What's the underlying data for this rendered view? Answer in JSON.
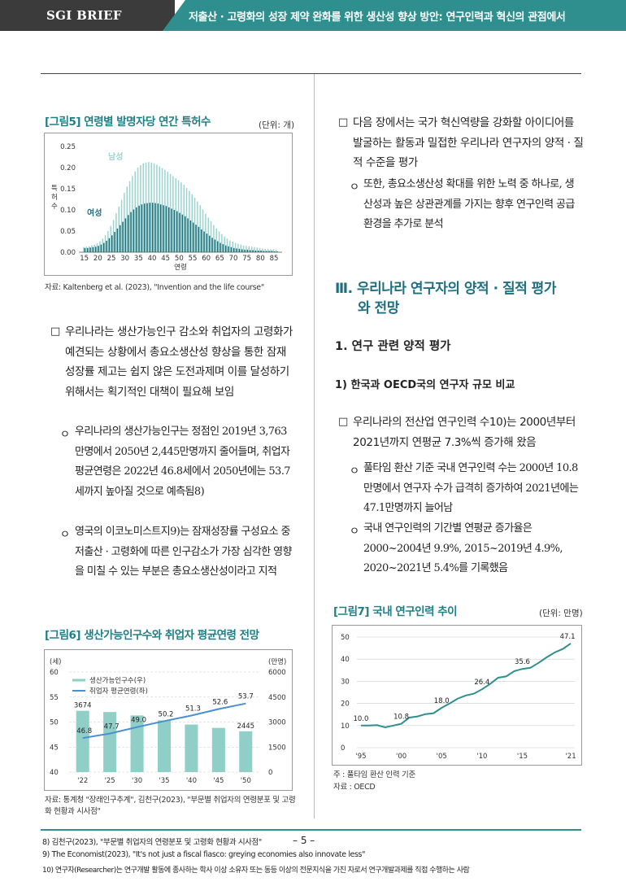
{
  "header": {
    "brand": "SGI BRIEF",
    "title": "저출산 · 고령화의 성장 제약 완화를 위한 생산성 향상 방안: 연구인력과 혁신의 관점에서"
  },
  "fig5": {
    "title": "[그림5] 연령별 발명자당 연간 특허수",
    "unit": "(단위: 개)",
    "source": "자료: Kaltenberg et al. (2023), \"Invention and the life course\"",
    "chart_data": {
      "type": "bar",
      "xlabel": "연령",
      "ylabel": "특허수",
      "xticks": [
        "15",
        "20",
        "25",
        "30",
        "35",
        "40",
        "45",
        "50",
        "55",
        "60",
        "65",
        "70",
        "75",
        "80",
        "85"
      ],
      "yticks": [
        "0.00",
        "0.05",
        "0.10",
        "0.15",
        "0.20",
        "0.25"
      ],
      "ylim": [
        0,
        0.25
      ],
      "series": [
        {
          "name": "남성",
          "color": "#9dd3cf",
          "x": [
            15,
            16,
            17,
            18,
            19,
            20,
            21,
            22,
            23,
            24,
            25,
            26,
            27,
            28,
            29,
            30,
            31,
            32,
            33,
            34,
            35,
            36,
            37,
            38,
            39,
            40,
            41,
            42,
            43,
            44,
            45,
            46,
            47,
            48,
            49,
            50,
            51,
            52,
            53,
            54,
            55,
            56,
            57,
            58,
            59,
            60,
            61,
            62,
            63,
            64,
            65,
            66,
            67,
            68,
            69,
            70,
            71,
            72,
            73,
            74,
            75,
            76,
            77,
            78,
            79,
            80,
            81,
            82,
            83,
            84,
            85,
            86
          ],
          "values": [
            0.012,
            0.013,
            0.014,
            0.016,
            0.018,
            0.021,
            0.026,
            0.032,
            0.04,
            0.05,
            0.062,
            0.076,
            0.092,
            0.108,
            0.124,
            0.14,
            0.155,
            0.168,
            0.18,
            0.191,
            0.2,
            0.206,
            0.21,
            0.212,
            0.213,
            0.212,
            0.21,
            0.207,
            0.203,
            0.199,
            0.195,
            0.19,
            0.185,
            0.18,
            0.175,
            0.17,
            0.165,
            0.159,
            0.152,
            0.145,
            0.137,
            0.129,
            0.12,
            0.111,
            0.101,
            0.091,
            0.082,
            0.073,
            0.064,
            0.056,
            0.049,
            0.043,
            0.037,
            0.032,
            0.028,
            0.025,
            0.022,
            0.02,
            0.018,
            0.016,
            0.015,
            0.014,
            0.013,
            0.012,
            0.011,
            0.01,
            0.009,
            0.008,
            0.008,
            0.007,
            0.007,
            0.006
          ]
        },
        {
          "name": "여성",
          "color": "#1f6f7f",
          "x": [
            15,
            16,
            17,
            18,
            19,
            20,
            21,
            22,
            23,
            24,
            25,
            26,
            27,
            28,
            29,
            30,
            31,
            32,
            33,
            34,
            35,
            36,
            37,
            38,
            39,
            40,
            41,
            42,
            43,
            44,
            45,
            46,
            47,
            48,
            49,
            50,
            51,
            52,
            53,
            54,
            55,
            56,
            57,
            58,
            59,
            60,
            61,
            62,
            63,
            64,
            65,
            66,
            67,
            68,
            69,
            70,
            71,
            72,
            73,
            74,
            75,
            76,
            77,
            78,
            79,
            80,
            81,
            82,
            83,
            84,
            85,
            86
          ],
          "values": [
            0.01,
            0.01,
            0.011,
            0.012,
            0.013,
            0.015,
            0.018,
            0.022,
            0.027,
            0.033,
            0.04,
            0.048,
            0.056,
            0.064,
            0.072,
            0.08,
            0.088,
            0.095,
            0.101,
            0.106,
            0.11,
            0.113,
            0.115,
            0.116,
            0.117,
            0.117,
            0.116,
            0.115,
            0.113,
            0.111,
            0.109,
            0.106,
            0.103,
            0.1,
            0.097,
            0.093,
            0.089,
            0.085,
            0.08,
            0.075,
            0.07,
            0.065,
            0.06,
            0.054,
            0.049,
            0.044,
            0.039,
            0.034,
            0.03,
            0.026,
            0.022,
            0.019,
            0.016,
            0.014,
            0.012,
            0.01,
            0.009,
            0.008,
            0.007,
            0.006,
            0.006,
            0.005,
            0.005,
            0.004,
            0.004,
            0.004,
            0.003,
            0.003,
            0.003,
            0.003,
            0.002,
            0.002
          ]
        }
      ]
    }
  },
  "left": {
    "p1": "우리나라는 생산가능인구 감소와 취업자의 고령화가 예견되는 상황에서 총요소생산성 향상을 통한 잠재성장률 제고는 쉽지 않은 도전과제며 이를 달성하기 위해서는 획기적인 대책이 필요해 보임",
    "p1_marker": "□",
    "s1": "우리나라의 생산가능인구는 정점인 2019년 3,763만명에서 2050년 2,445만명까지 줄어들며, 취업자 평균연령은 2022년 46.8세에서 2050년에는 53.7세까지 높아질 것으로 예측됨8)",
    "s2": "영국의 이코노미스트지9)는 잠재성장률 구성요소 중 저출산 · 고령화에 따른 인구감소가 가장 심각한 영향을 미칠 수 있는 부분은 총요소생산성이라고 지적",
    "sub_marker": "ㅇ"
  },
  "fig6": {
    "title": "[그림6] 생산가능인구수와 취업자 평균연령 전망",
    "source": "자료: 통계청 \"장래인구추계\", 김천구(2023), \"부문별 취업자의 연령분포 및 고령화 현황과 시사점\"",
    "chart_data": {
      "type": "bar",
      "categories": [
        "'22",
        "'25",
        "'30",
        "'35",
        "'40",
        "'45",
        "'50"
      ],
      "left_axis_label": "(세)",
      "right_axis_label": "(만명)",
      "left_ticks": [
        "40",
        "45",
        "50",
        "55",
        "60"
      ],
      "right_ticks": [
        "0",
        "1500",
        "3000",
        "4500",
        "6000"
      ],
      "ylim_left": [
        40,
        60
      ],
      "ylim_right": [
        0,
        6000
      ],
      "series": [
        {
          "name": "생산가능인구수(우)",
          "color": "#8fcfc8",
          "axis": "right",
          "values": [
            3674,
            3600,
            3400,
            3100,
            2850,
            2650,
            2445
          ],
          "labels": [
            "3674",
            "",
            "",
            "",
            "",
            "",
            "2445"
          ]
        },
        {
          "name": "취업자 평균연령(좌)",
          "color": "#4a8fd0",
          "axis": "left",
          "values": [
            46.8,
            47.7,
            49.0,
            50.2,
            51.3,
            52.6,
            53.7
          ],
          "labels": [
            "46.8",
            "47.7",
            "49.0",
            "50.2",
            "51.3",
            "52.6",
            "53.7"
          ]
        }
      ]
    }
  },
  "right": {
    "p1": "다음 장에서는 국가 혁신역량을 강화할 아이디어를 발굴하는 활동과 밀접한 우리나라 연구자의 양적 · 질적 수준을 평가",
    "s1": "또한, 총요소생산성 확대를 위한 노력 중 하나로, 생산성과 높은 상관관계를 가지는 향후 연구인력 공급환경을 추가로 분석",
    "h3_line1": "Ⅲ. 우리나라 연구자의 양적 · 질적 평가",
    "h3_line2": "와 전망",
    "h4": "1. 연구 관련 양적 평가",
    "h5": "1) 한국과 OECD국의 연구자 규모 비교",
    "p2": "우리나라의 전산업 연구인력 수10)는 2000년부터 2021년까지 연평균 7.3%씩 증가해 왔음",
    "s2": "풀타임 환산 기준 국내 연구인력 수는 2000년 10.8만명에서 연구자 수가 급격히 증가하여 2021년에는 47.1만명까지 늘어남",
    "s3": "국내 연구인력의 기간별 연평균 증가율은 2000~2004년 9.9%, 2015~2019년 4.9%, 2020~2021년 5.4%를 기록했음"
  },
  "fig7": {
    "title": "[그림7] 국내 연구인력 추이",
    "unit": "(단위: 만명)",
    "note": "주 : 풀타임 환산 인력 기준",
    "source": "자료 : OECD",
    "chart_data": {
      "type": "line",
      "color": "#2f8f8e",
      "xticks": [
        "'95",
        "'00",
        "'05",
        "'10",
        "'15",
        "'21"
      ],
      "yticks": [
        "0",
        "10",
        "20",
        "30",
        "40",
        "50"
      ],
      "ylim": [
        0,
        50
      ],
      "x": [
        1995,
        1996,
        1997,
        1998,
        1999,
        2000,
        2001,
        2002,
        2003,
        2004,
        2005,
        2006,
        2007,
        2008,
        2009,
        2010,
        2011,
        2012,
        2013,
        2014,
        2015,
        2016,
        2017,
        2018,
        2019,
        2020,
        2021
      ],
      "values": [
        10.0,
        10.0,
        10.2,
        9.2,
        10.0,
        10.8,
        13.6,
        14.1,
        15.2,
        15.6,
        18.0,
        20.0,
        22.2,
        23.6,
        24.4,
        26.4,
        28.8,
        31.6,
        32.2,
        34.6,
        35.6,
        36.1,
        38.3,
        40.8,
        43.0,
        44.6,
        47.1
      ],
      "labels": {
        "1995": "10.0",
        "2000": "10.8",
        "2005": "18.0",
        "2010": "26.4",
        "2015": "35.6",
        "2021": "47.1"
      }
    }
  },
  "footnotes": {
    "f8": "8) 김천구(2023), \"부문별 취업자의 연령분포 및 고령화 현황과 시사점\"",
    "f9": "9) The Economist(2023), \"It's not just a fiscal fiasco: greying economies also innovate less\"",
    "f10": "10) 연구자(Researcher)는 연구개발 활동에 종사하는 학사 이상 소유자 또는 동등 이상의 전문지식을 가진 자로서 연구개발과제를 직접 수행하는 사람"
  },
  "page_number": "– 5 –"
}
